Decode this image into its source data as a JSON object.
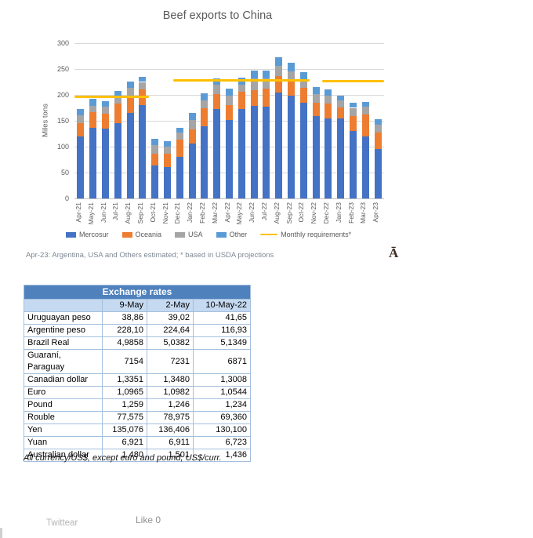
{
  "chart_data": [
    {
      "type": "bar",
      "stacked": true,
      "title": "Beef exports to China",
      "ylabel": "Miles tons",
      "ylim": [
        0,
        300
      ],
      "yticks": [
        0,
        50,
        100,
        150,
        200,
        250,
        300
      ],
      "grid": true,
      "legend_position": "bottom",
      "categories": [
        "Apr-21",
        "May-21",
        "Jun-21",
        "Jul-21",
        "Aug-21",
        "Sep-21",
        "Oct-21",
        "Nov-21",
        "Dec-21",
        "Jan-22",
        "Feb-22",
        "Mar-22",
        "Apr-22",
        "May-22",
        "Jun-22",
        "Jul-22",
        "Aug-22",
        "Sep-22",
        "Oct-22",
        "Nov-22",
        "Dec-22",
        "Jan-23",
        "Feb-23",
        "Mar-23",
        "Apr-23"
      ],
      "series": [
        {
          "name": "Mercosur",
          "color": "#4472C4",
          "values": [
            120,
            137,
            135,
            145,
            165,
            180,
            63,
            60,
            81,
            106,
            140,
            172,
            152,
            172,
            179,
            178,
            205,
            198,
            185,
            159,
            155,
            155,
            130,
            120,
            96
          ]
        },
        {
          "name": "Oceania",
          "color": "#ED7D31",
          "values": [
            26,
            29,
            29,
            38,
            32,
            31,
            23,
            27,
            33,
            28,
            34,
            30,
            29,
            34,
            30,
            34,
            31,
            30,
            29,
            26,
            28,
            21,
            29,
            42,
            32
          ]
        },
        {
          "name": "USA",
          "color": "#A5A5A5",
          "values": [
            15,
            13,
            14,
            15,
            16,
            14,
            17,
            13,
            13,
            18,
            15,
            18,
            18,
            14,
            23,
            20,
            20,
            17,
            16,
            17,
            15,
            13,
            16,
            15,
            15
          ]
        },
        {
          "name": "Other",
          "color": "#5B9BD5",
          "values": [
            11,
            13,
            10,
            10,
            13,
            10,
            12,
            10,
            10,
            13,
            14,
            12,
            13,
            13,
            15,
            15,
            17,
            17,
            14,
            13,
            12,
            9,
            10,
            10,
            10
          ]
        }
      ],
      "requirements_line": {
        "name": "Monthly requirements*",
        "color": "#FFC000",
        "segments": [
          {
            "from_index": 0,
            "to_index": 5,
            "value": 196
          },
          {
            "from_index": 8,
            "to_index": 18,
            "value": 228
          },
          {
            "from_index": 20,
            "to_index": 24,
            "value": 227
          }
        ]
      },
      "note": "Apr-23: Argentina, USA and Others estimated; * based in USDA projections",
      "annotation_char": "Ā"
    },
    {
      "type": "table",
      "title": "Exchange rates",
      "columns": [
        "",
        "9-May",
        "2-May",
        "10-May-22"
      ],
      "rows": [
        [
          "Uruguayan peso",
          "38,86",
          "39,02",
          "41,65"
        ],
        [
          "Argentine peso",
          "228,10",
          "224,64",
          "116,93"
        ],
        [
          "Brazil Real",
          "4,9858",
          "5,0382",
          "5,1349"
        ],
        [
          "Guaraní, Paraguay",
          "7154",
          "7231",
          "6871"
        ],
        [
          "Canadian dollar",
          "1,3351",
          "1,3480",
          "1,3008"
        ],
        [
          "Euro",
          "1,0965",
          "1,0982",
          "1,0544"
        ],
        [
          "Pound",
          "1,259",
          "1,246",
          "1,234"
        ],
        [
          "Rouble",
          "77,575",
          "78,975",
          "69,360"
        ],
        [
          "Yen",
          "135,076",
          "136,406",
          "130,100"
        ],
        [
          "Yuan",
          "6,921",
          "6,911",
          "6,723"
        ],
        [
          "Australian dollar",
          "1,480",
          "1,501",
          "1,436"
        ]
      ],
      "footnote": "All currency/US$, except euro and pound, US$/curr."
    }
  ],
  "social": {
    "twittear_label": "Twittear",
    "like_label": "Like 0"
  },
  "colors": {
    "mercosur": "#4472C4",
    "oceania": "#ED7D31",
    "usa": "#A5A5A5",
    "other": "#5B9BD5",
    "requirements": "#FFC000",
    "table_header_bg": "#4F81BD",
    "table_subheader_bg": "#C5D9F1",
    "gridline": "#D9D9D9"
  }
}
